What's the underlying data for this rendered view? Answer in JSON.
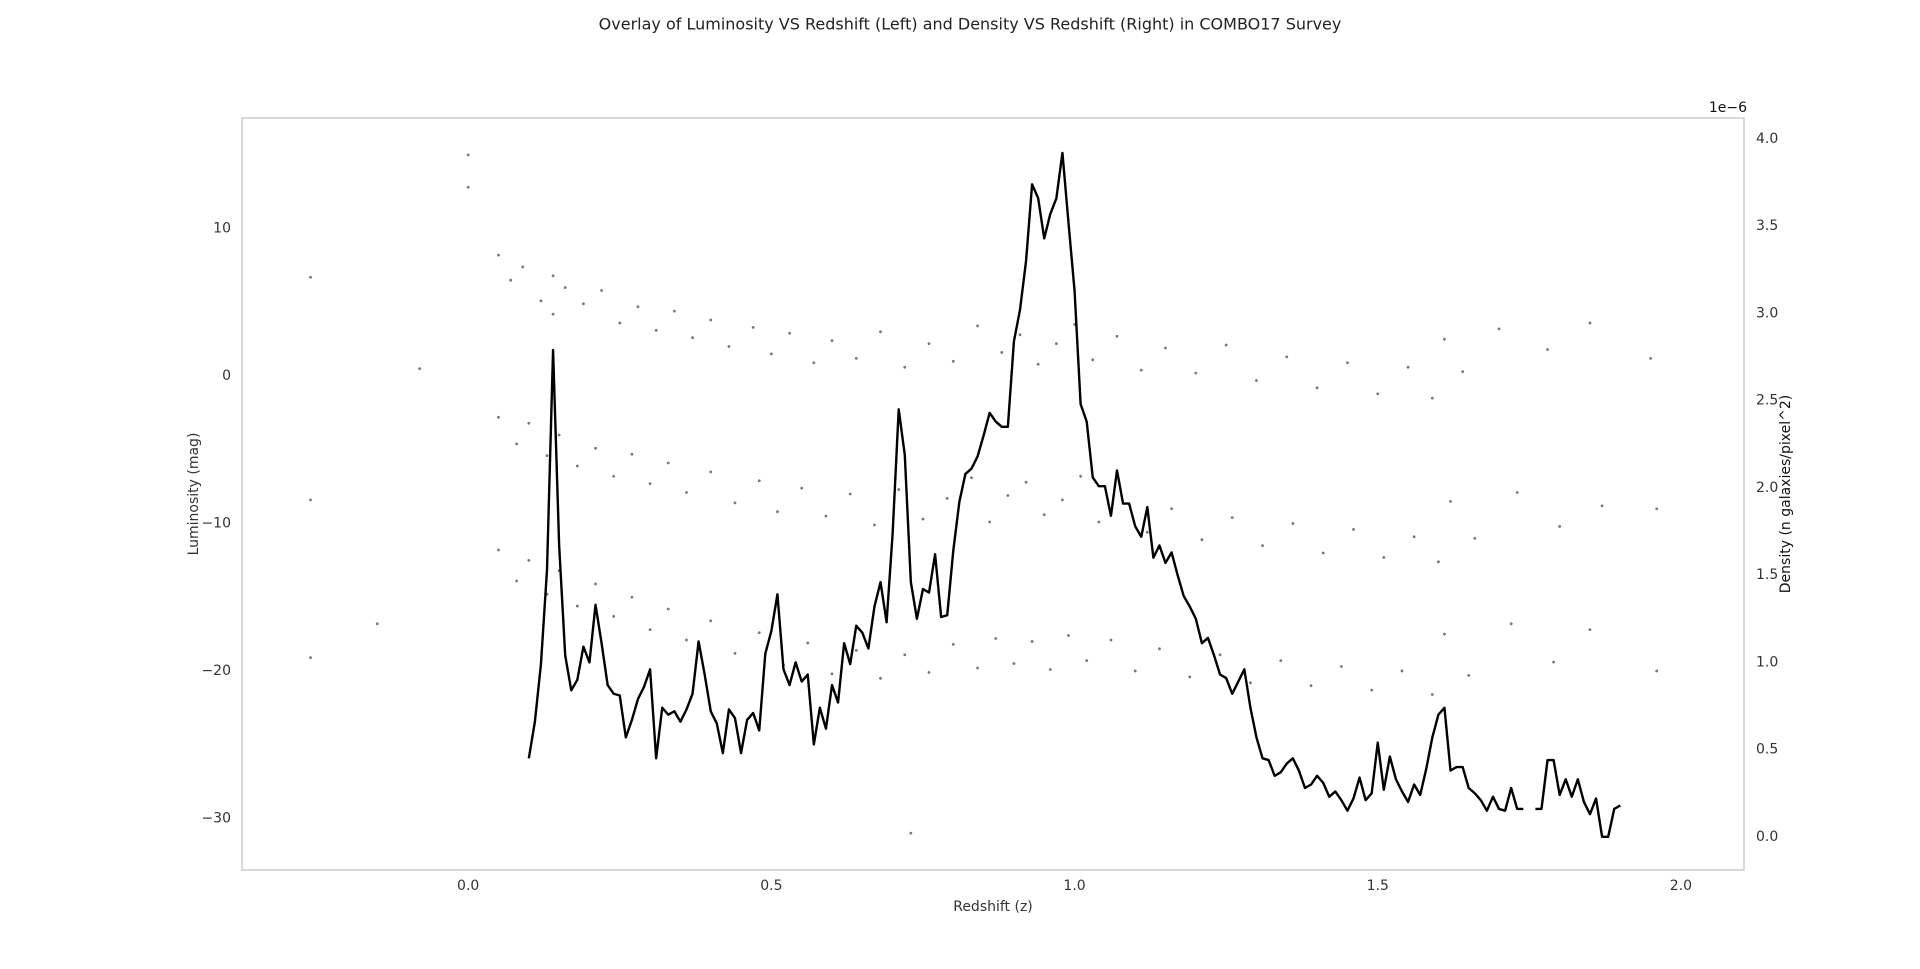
{
  "chart_data": {
    "type": "scatter",
    "title": "Overlay of Luminosity VS Redshift (Left) and Density VS Redshift (Right) in COMBO17 Survey",
    "xlabel": "Redshift (z)",
    "ylabel": "Luminosity (mag)",
    "y2label": "Density (n galaxies/pixel^2)",
    "y2offset": "1e−6",
    "grid": false,
    "xlim": [
      -0.373,
      2.104
    ],
    "xticks": [
      {
        "value": 0,
        "label": "0.0"
      },
      0.5,
      {
        "value": 1,
        "label": "1.0"
      },
      1.5,
      {
        "value": 2,
        "label": "2.0"
      }
    ],
    "ylim": [
      -33.5,
      17.5
    ],
    "yticks": [
      {
        "value": -30,
        "label": "−30"
      },
      {
        "value": -20,
        "label": "−20"
      },
      {
        "value": -10,
        "label": "−10"
      },
      0,
      10
    ],
    "y2lim": [
      -0.19,
      4.12
    ],
    "y2ticks": [
      {
        "value": 0,
        "label": "0.0"
      },
      0.5,
      {
        "value": 1,
        "label": "1.0"
      },
      1.5,
      {
        "value": 2,
        "label": "2.0"
      },
      2.5,
      {
        "value": 3,
        "label": "3.0"
      },
      3.5,
      {
        "value": 4,
        "label": "4.0"
      }
    ],
    "series": [
      {
        "type": "scatter",
        "color": "#555555",
        "x": [
          0.05,
          0.07,
          0.09,
          0.12,
          0.14,
          0.14,
          0.16,
          0.19,
          0.22,
          0.25,
          0.28,
          0.31,
          0.34,
          0.37,
          0.4,
          0.43,
          0.47,
          0.5,
          0.53,
          0.57,
          0.6,
          0.64,
          0.68,
          0.72,
          0.76,
          0.8,
          0.84,
          0.88,
          0.91,
          0.94,
          0.97,
          1.0,
          1.03,
          1.07,
          1.11,
          1.15,
          1.2,
          1.25,
          1.3,
          1.35,
          1.4,
          1.45,
          1.5,
          1.55,
          1.59,
          1.61,
          1.64,
          1.7,
          1.78,
          1.85,
          1.95,
          0.05,
          0.08,
          0.1,
          0.13,
          0.15,
          0.18,
          0.21,
          0.24,
          0.27,
          0.3,
          0.33,
          0.36,
          0.4,
          0.44,
          0.48,
          0.51,
          0.55,
          0.59,
          0.63,
          0.67,
          0.71,
          0.75,
          0.79,
          0.83,
          0.86,
          0.89,
          0.92,
          0.95,
          0.98,
          1.01,
          1.04,
          1.08,
          1.12,
          1.16,
          1.21,
          1.26,
          1.31,
          1.36,
          1.41,
          1.46,
          1.51,
          1.56,
          1.6,
          1.62,
          1.66,
          1.73,
          1.8,
          1.87,
          1.96,
          0.05,
          0.08,
          0.1,
          0.13,
          0.15,
          0.18,
          0.21,
          0.24,
          0.27,
          0.3,
          0.33,
          0.36,
          0.4,
          0.44,
          0.48,
          0.52,
          0.56,
          0.6,
          0.64,
          0.68,
          0.72,
          0.76,
          0.8,
          0.84,
          0.87,
          0.9,
          0.93,
          0.96,
          0.99,
          1.02,
          1.06,
          1.1,
          1.14,
          1.19,
          1.24,
          1.29,
          1.34,
          1.39,
          1.44,
          1.49,
          1.54,
          1.59,
          1.61,
          1.65,
          1.72,
          1.79,
          1.85,
          1.96,
          -0.26,
          -0.26,
          -0.26,
          0.0,
          0.0,
          0.73,
          -0.08,
          -0.15
        ],
        "values": [
          8.2,
          6.5,
          7.4,
          5.1,
          6.8,
          4.2,
          6.0,
          4.9,
          5.8,
          3.6,
          4.7,
          3.1,
          4.4,
          2.6,
          3.8,
          2.0,
          3.3,
          1.5,
          2.9,
          0.9,
          2.4,
          1.2,
          3.0,
          0.6,
          2.2,
          1.0,
          3.4,
          1.6,
          2.8,
          0.8,
          2.2,
          3.5,
          1.1,
          2.7,
          0.4,
          1.9,
          0.2,
          2.1,
          -0.3,
          1.3,
          -0.8,
          0.9,
          -1.2,
          0.6,
          -1.5,
          2.5,
          0.3,
          3.2,
          1.8,
          3.6,
          1.2,
          -2.8,
          -4.6,
          -3.2,
          -5.4,
          -4.0,
          -6.1,
          -4.9,
          -6.8,
          -5.3,
          -7.3,
          -5.9,
          -7.9,
          -6.5,
          -8.6,
          -7.1,
          -9.2,
          -7.6,
          -9.5,
          -8.0,
          -10.1,
          -7.7,
          -9.7,
          -8.3,
          -6.9,
          -9.9,
          -8.1,
          -7.2,
          -9.4,
          -8.4,
          -6.8,
          -9.9,
          -8.6,
          -10.6,
          -9.0,
          -11.1,
          -9.6,
          -11.5,
          -10.0,
          -12.0,
          -10.4,
          -12.3,
          -10.9,
          -12.6,
          -8.5,
          -11.0,
          -7.9,
          -10.2,
          -8.8,
          -9.0,
          -11.8,
          -13.9,
          -12.5,
          -14.8,
          -13.2,
          -15.6,
          -14.1,
          -16.3,
          -15.0,
          -17.2,
          -15.8,
          -17.9,
          -16.6,
          -18.8,
          -17.4,
          -19.6,
          -18.1,
          -20.2,
          -18.6,
          -20.5,
          -18.9,
          -20.1,
          -18.2,
          -19.8,
          -17.8,
          -19.5,
          -18.0,
          -19.9,
          -17.6,
          -19.3,
          -17.9,
          -20.0,
          -18.5,
          -20.4,
          -18.9,
          -20.8,
          -19.3,
          -21.0,
          -19.7,
          -21.3,
          -20.0,
          -21.6,
          -17.5,
          -20.3,
          -16.8,
          -19.4,
          -17.2,
          -20.0,
          6.7,
          -8.4,
          -19.1,
          15.0,
          12.8,
          -31.0,
          0.5,
          -16.8
        ]
      },
      {
        "type": "line",
        "axis": "y2",
        "color": "#000000",
        "x": [
          0.1,
          0.11,
          0.12,
          0.13,
          0.14,
          0.15,
          0.16,
          0.17,
          0.18,
          0.19,
          0.2,
          0.21,
          0.22,
          0.23,
          0.24,
          0.25,
          0.26,
          0.27,
          0.28,
          0.29,
          0.3,
          0.31,
          0.32,
          0.33,
          0.34,
          0.35,
          0.36,
          0.37,
          0.38,
          0.39,
          0.4,
          0.41,
          0.42,
          0.43,
          0.44,
          0.45,
          0.46,
          0.47,
          0.48,
          0.49,
          0.5,
          0.51,
          0.52,
          0.53,
          0.54,
          0.55,
          0.56,
          0.57,
          0.58,
          0.59,
          0.6,
          0.61,
          0.62,
          0.63,
          0.64,
          0.65,
          0.66,
          0.67,
          0.68,
          0.69,
          0.7,
          0.71,
          0.72,
          0.73,
          0.74,
          0.75,
          0.76,
          0.77,
          0.78,
          0.79,
          0.8,
          0.81,
          0.82,
          0.83,
          0.84,
          0.85,
          0.86,
          0.87,
          0.88,
          0.89,
          0.9,
          0.91,
          0.92,
          0.93,
          0.94,
          0.95,
          0.96,
          0.97,
          0.98,
          0.99,
          1.0,
          1.01,
          1.02,
          1.03,
          1.04,
          1.05,
          1.06,
          1.07,
          1.08,
          1.09,
          1.1,
          1.11,
          1.12,
          1.13,
          1.14,
          1.15,
          1.16,
          1.17,
          1.18,
          1.19,
          1.2,
          1.21,
          1.22,
          1.23,
          1.24,
          1.25,
          1.26,
          1.27,
          1.28,
          1.29,
          1.3,
          1.31,
          1.32,
          1.33,
          1.34,
          1.35,
          1.36,
          1.37,
          1.38,
          1.39,
          1.4,
          1.41,
          1.42,
          1.43,
          1.44,
          1.45,
          1.46,
          1.47,
          1.48,
          1.49,
          1.5,
          1.51,
          1.52,
          1.53,
          1.54,
          1.55,
          1.56,
          1.57,
          1.58,
          1.59,
          1.6,
          1.61,
          1.62,
          1.63,
          1.64,
          1.65,
          1.66,
          1.67,
          1.68,
          1.69,
          1.7,
          1.71,
          1.72,
          1.73,
          1.74,
          1.75,
          1.76,
          1.77,
          1.78,
          1.79,
          1.8,
          1.81,
          1.82,
          1.83,
          1.84,
          1.85,
          1.86,
          1.87,
          1.88,
          1.89,
          1.9
        ],
        "values": [
          0.45,
          0.66,
          0.99,
          1.53,
          2.79,
          1.67,
          1.04,
          0.84,
          0.9,
          1.09,
          1.0,
          1.33,
          1.11,
          0.87,
          0.82,
          0.81,
          0.57,
          0.67,
          0.79,
          0.86,
          0.96,
          0.45,
          0.74,
          0.7,
          0.72,
          0.66,
          0.73,
          0.82,
          1.12,
          0.93,
          0.72,
          0.65,
          0.48,
          0.73,
          0.68,
          0.48,
          0.67,
          0.71,
          0.61,
          1.05,
          1.18,
          1.39,
          0.96,
          0.87,
          1.0,
          0.89,
          0.93,
          0.53,
          0.74,
          0.62,
          0.87,
          0.77,
          1.11,
          0.99,
          1.21,
          1.17,
          1.08,
          1.32,
          1.46,
          1.23,
          1.74,
          2.45,
          2.19,
          1.46,
          1.25,
          1.42,
          1.4,
          1.62,
          1.26,
          1.27,
          1.64,
          1.92,
          2.08,
          2.11,
          2.18,
          2.3,
          2.43,
          2.38,
          2.35,
          2.35,
          2.84,
          3.02,
          3.3,
          3.74,
          3.66,
          3.43,
          3.57,
          3.66,
          3.92,
          3.52,
          3.13,
          2.48,
          2.38,
          2.06,
          2.01,
          2.01,
          1.84,
          2.1,
          1.91,
          1.91,
          1.78,
          1.72,
          1.89,
          1.6,
          1.67,
          1.57,
          1.63,
          1.5,
          1.38,
          1.32,
          1.25,
          1.11,
          1.14,
          1.04,
          0.93,
          0.91,
          0.82,
          0.89,
          0.96,
          0.74,
          0.57,
          0.45,
          0.44,
          0.35,
          0.37,
          0.42,
          0.45,
          0.38,
          0.28,
          0.3,
          0.35,
          0.31,
          0.23,
          0.26,
          0.21,
          0.15,
          0.22,
          0.34,
          0.21,
          0.25,
          0.54,
          0.27,
          0.46,
          0.33,
          0.26,
          0.2,
          0.3,
          0.24,
          0.39,
          0.57,
          0.7,
          0.74,
          0.38,
          0.4,
          0.4,
          0.28,
          0.25,
          0.21,
          0.15,
          0.23,
          0.16,
          0.15,
          0.28,
          0.16,
          0.16,
          null,
          0.16,
          0.16,
          0.44,
          0.44,
          0.24,
          0.33,
          0.23,
          0.33,
          0.2,
          0.13,
          0.22,
          0.0,
          0.0,
          0.16,
          0.18
        ]
      }
    ]
  }
}
